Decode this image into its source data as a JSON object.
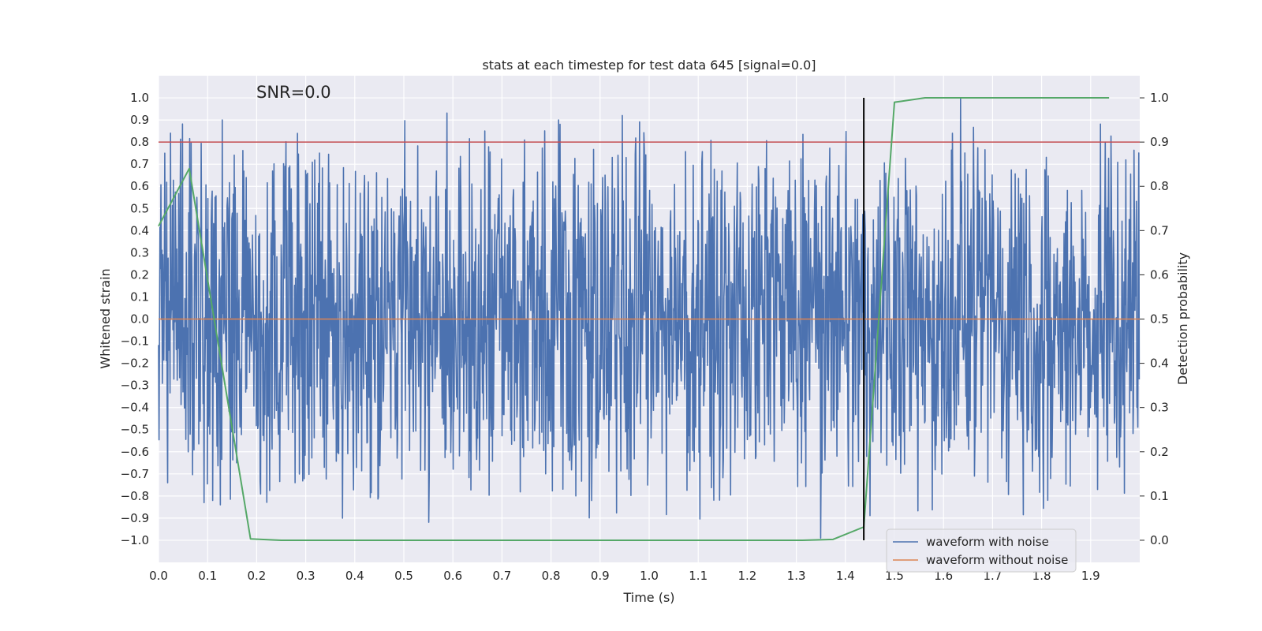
{
  "chart_data": {
    "type": "line",
    "title": "stats at each timestep for test data 645 [signal=0.0]",
    "annotation": "SNR=0.0",
    "xlabel": "Time (s)",
    "ylabel_left": "Whitened strain",
    "ylabel_right": "Detection probability",
    "xlim": [
      0.0,
      2.0
    ],
    "ylim_left": [
      -1.1,
      1.1
    ],
    "ylim_right": [
      -0.05,
      1.05
    ],
    "xticks": [
      "0.0",
      "0.1",
      "0.2",
      "0.3",
      "0.4",
      "0.5",
      "0.6",
      "0.7",
      "0.8",
      "0.9",
      "1.0",
      "1.1",
      "1.2",
      "1.3",
      "1.4",
      "1.5",
      "1.6",
      "1.7",
      "1.8",
      "1.9"
    ],
    "yticks_left": [
      "1.0",
      "0.9",
      "0.8",
      "0.7",
      "0.6",
      "0.5",
      "0.4",
      "0.3",
      "0.2",
      "0.1",
      "0.0",
      "−0.1",
      "−0.2",
      "−0.3",
      "−0.4",
      "−0.5",
      "−0.6",
      "−0.7",
      "−0.8",
      "−0.9",
      "−1.0"
    ],
    "yticks_right": [
      "1.0",
      "0.9",
      "0.8",
      "0.7",
      "0.6",
      "0.5",
      "0.4",
      "0.3",
      "0.2",
      "0.1",
      "0.0"
    ],
    "grid": true,
    "legend_position": "lower-right",
    "series": [
      {
        "name": "waveform with noise",
        "color": "#4c72b0",
        "description": "noisy whitened strain, approx. uniform noise in [-1, 1], 2048 samples over 2.0 s"
      },
      {
        "name": "waveform without noise",
        "color": "#dd8452",
        "y_constant": 0.0
      }
    ],
    "detection_probability": {
      "axis": "right",
      "color": "#55a868",
      "x": [
        0.0,
        0.0625,
        0.1875,
        0.25,
        1.3125,
        1.375,
        1.4375,
        1.5,
        1.5625,
        1.625,
        1.9375
      ],
      "y": [
        0.71,
        0.84,
        0.003,
        0.0,
        0.0,
        0.002,
        0.03,
        0.99,
        1.0,
        1.0,
        1.0
      ]
    },
    "threshold_line": {
      "axis": "left",
      "y": 0.8,
      "color": "#c44e52"
    },
    "event_marker": {
      "x": 1.4375,
      "y_range": [
        -1.0,
        1.0
      ],
      "color": "#000000"
    },
    "noise_spikes": [
      {
        "x": 0.013,
        "y": 0.75
      },
      {
        "x": 0.13,
        "y": 0.9
      },
      {
        "x": 0.11,
        "y": -0.82
      },
      {
        "x": 0.375,
        "y": -0.9
      },
      {
        "x": 0.665,
        "y": 0.85
      },
      {
        "x": 0.815,
        "y": 0.9
      },
      {
        "x": 0.945,
        "y": 0.92
      },
      {
        "x": 1.35,
        "y": -0.99
      },
      {
        "x": 1.635,
        "y": 1.0
      },
      {
        "x": 1.93,
        "y": 0.8
      }
    ]
  }
}
